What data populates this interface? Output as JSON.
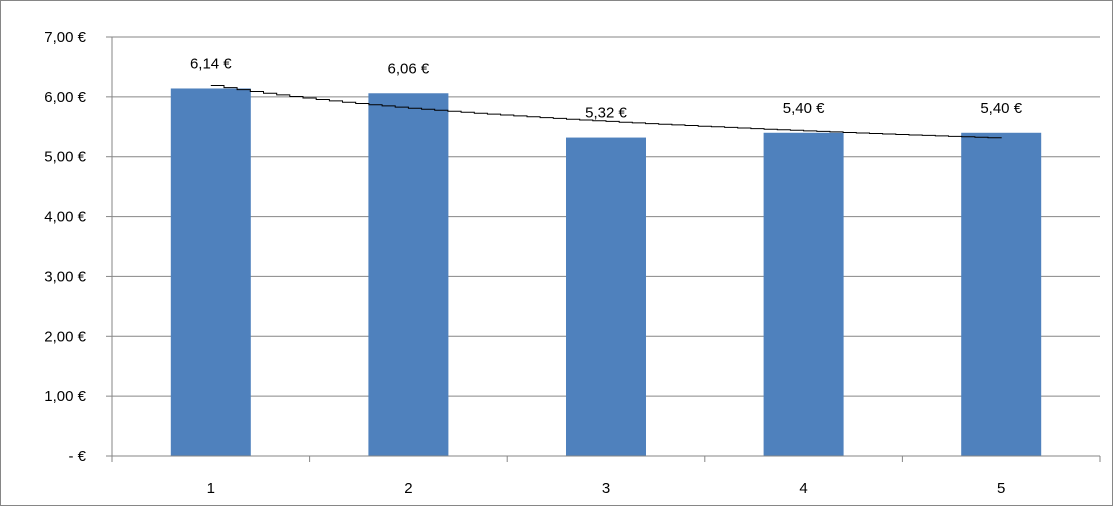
{
  "chart_data": {
    "type": "bar",
    "title": "",
    "xlabel": "",
    "ylabel": "",
    "categories": [
      "1",
      "2",
      "3",
      "4",
      "5"
    ],
    "values": [
      6.14,
      6.06,
      5.32,
      5.4,
      5.4
    ],
    "data_labels": [
      "6,14 €",
      "6,06 €",
      "5,32 €",
      "5,40 €",
      "5,40 €"
    ],
    "ylim": [
      0,
      7
    ],
    "y_ticks": [
      0,
      1,
      2,
      3,
      4,
      5,
      6,
      7
    ],
    "y_tick_labels": [
      "-  €",
      "1,00 €",
      "2,00 €",
      "3,00 €",
      "4,00 €",
      "5,00 €",
      "6,00 €",
      "7,00 €"
    ],
    "grid": true,
    "legend": "none",
    "trendline": {
      "type": "logarithmic",
      "values": [
        6.19,
        5.8,
        5.59,
        5.43,
        5.31
      ]
    },
    "colors": {
      "bar": "#4F81BD",
      "gridline": "#868686",
      "trendline": "#000000"
    }
  }
}
